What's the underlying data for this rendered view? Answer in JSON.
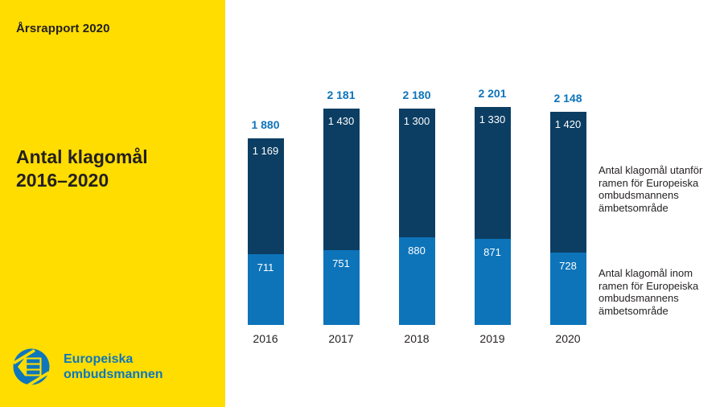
{
  "colors": {
    "sidebar_yellow": "#ffdd00",
    "bar_light_blue": "#0d74ba",
    "bar_dark_blue": "#0c3e63",
    "total_label_blue": "#0d74ba",
    "logo_blue": "#0e77bb",
    "text_dark": "#231f20",
    "value_label_white": "#ffffff"
  },
  "sidebar": {
    "report_label": "Årsrapport 2020",
    "title": "Antal klagomål\n2016–2020",
    "logo_text": "Europeiska\nombudsmannen"
  },
  "chart_data": {
    "type": "bar",
    "stacked": true,
    "title": "Antal klagomål 2016–2020",
    "grid": false,
    "legend_position": "right",
    "categories": [
      "2016",
      "2017",
      "2018",
      "2019",
      "2020"
    ],
    "series": [
      {
        "name": "Antal klagomål inom ramen för Europeiska ombudsmannens ämbetsområde",
        "color": "#0d74ba",
        "values": [
          711,
          751,
          880,
          871,
          728
        ],
        "labels": [
          "711",
          "751",
          "880",
          "871",
          "728"
        ]
      },
      {
        "name": "Antal klagomål utanför ramen för Europeiska ombudsmannens ämbetsområde",
        "color": "#0c3e63",
        "values": [
          1169,
          1430,
          1300,
          1330,
          1420
        ],
        "labels": [
          "1 169",
          "1 430",
          "1 300",
          "1 330",
          "1 420"
        ]
      }
    ],
    "totals": {
      "values": [
        1880,
        2181,
        2180,
        2201,
        2148
      ],
      "labels": [
        "1 880",
        "2 181",
        "2 180",
        "2 201",
        "2 148"
      ]
    },
    "legend": [
      {
        "name": "utanför",
        "text": "Antal klagomål utanför\nramen för Europeiska\nombudsmannens\nämbetsområde"
      },
      {
        "name": "inom",
        "text": "Antal klagomål inom\nramen för Europeiska\nombudsmannens\nämbetsområde"
      }
    ]
  }
}
